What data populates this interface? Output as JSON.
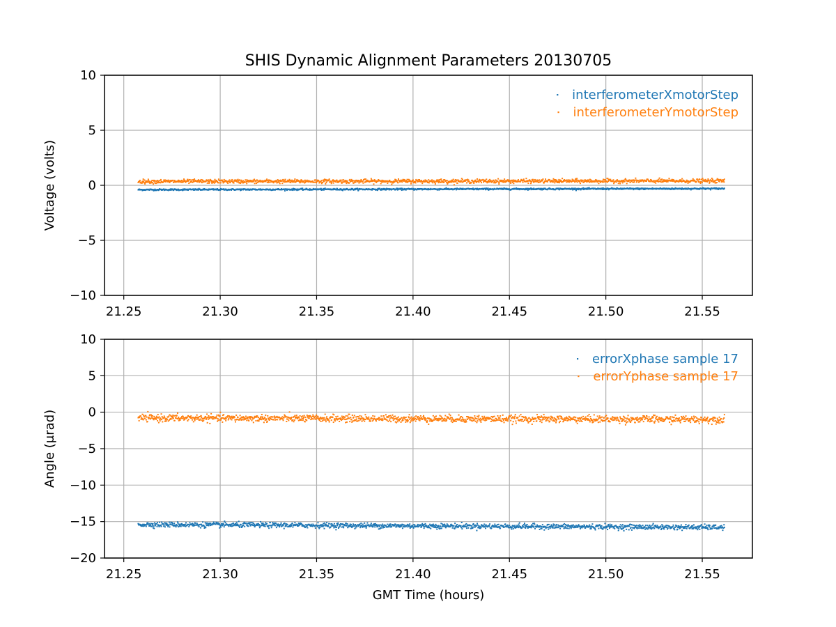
{
  "figure": {
    "title": "SHIS Dynamic Alignment Parameters 20130705"
  },
  "chart_data": [
    {
      "type": "scatter",
      "xlabel": "",
      "ylabel": "Voltage (volts)",
      "xlim": [
        21.24,
        21.576
      ],
      "ylim": [
        -10,
        10
      ],
      "xticks": [
        21.25,
        21.3,
        21.35,
        21.4,
        21.45,
        21.5,
        21.55
      ],
      "xtick_labels": [
        "21.25",
        "21.30",
        "21.35",
        "21.40",
        "21.45",
        "21.50",
        "21.55"
      ],
      "yticks": [
        -10,
        -5,
        0,
        5,
        10
      ],
      "ytick_labels": [
        "−10",
        "−5",
        "0",
        "5",
        "10"
      ],
      "grid": true,
      "legend_position": "top-right",
      "x_range": [
        21.2575,
        21.5615
      ],
      "series": [
        {
          "name": "interferometerXmotorStep",
          "color": "#1f77b4",
          "values_start": -0.4,
          "values_end": -0.3,
          "band": 0.1
        },
        {
          "name": "interferometerYmotorStep",
          "color": "#ff7f0e",
          "values_start": 0.35,
          "values_end": 0.4,
          "band": 0.25
        }
      ]
    },
    {
      "type": "scatter",
      "xlabel": "GMT Time (hours)",
      "ylabel": "Angle (μrad)",
      "xlim": [
        21.24,
        21.576
      ],
      "ylim": [
        -20,
        10
      ],
      "xticks": [
        21.25,
        21.3,
        21.35,
        21.4,
        21.45,
        21.5,
        21.55
      ],
      "xtick_labels": [
        "21.25",
        "21.30",
        "21.35",
        "21.40",
        "21.45",
        "21.50",
        "21.55"
      ],
      "yticks": [
        -20,
        -15,
        -10,
        -5,
        0,
        5,
        10
      ],
      "ytick_labels": [
        "−20",
        "−15",
        "−10",
        "−5",
        "0",
        "5",
        "10"
      ],
      "grid": true,
      "legend_position": "top-right",
      "x_range": [
        21.2575,
        21.5615
      ],
      "series": [
        {
          "name": "errorXphase sample 17",
          "color": "#1f77b4",
          "values_start": -15.4,
          "values_end": -15.8,
          "band": 0.5
        },
        {
          "name": "errorYphase sample 17",
          "color": "#ff7f0e",
          "values_start": -0.8,
          "values_end": -1.0,
          "band": 0.7
        }
      ]
    }
  ]
}
